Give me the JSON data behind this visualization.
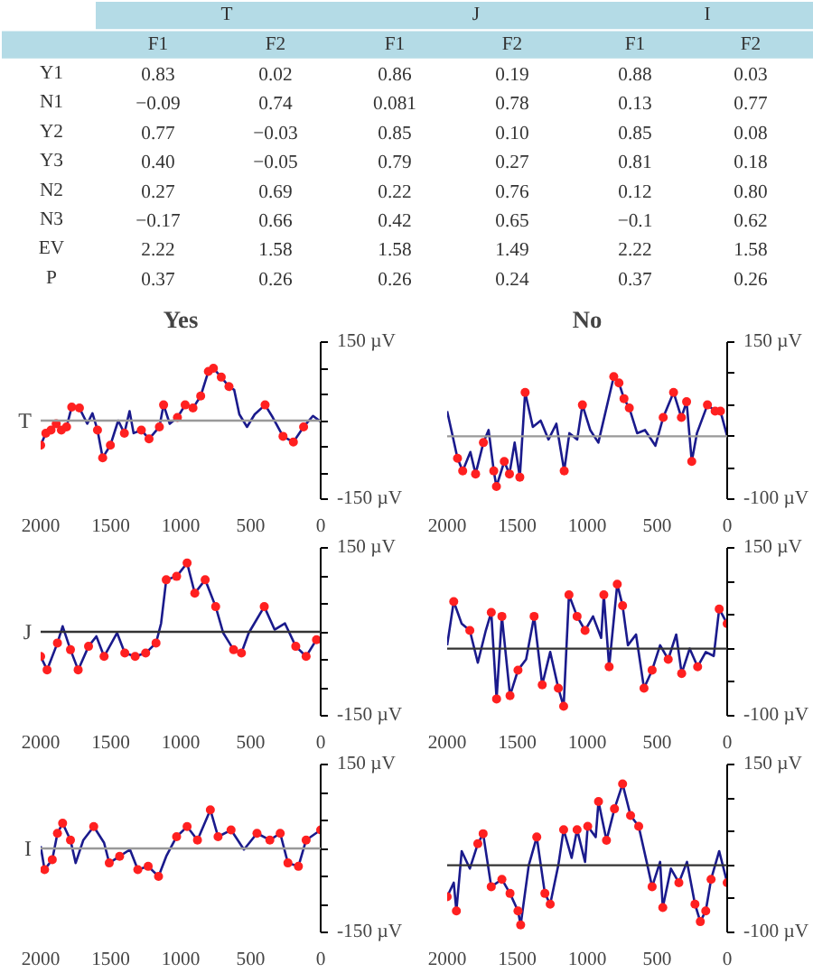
{
  "chart_data": [
    {
      "type": "other",
      "annotations": [
        "T",
        "J",
        "I",
        "F1",
        "F2",
        "F1",
        "F2",
        "F1",
        "F2",
        "Y1",
        "0.83",
        "0.02",
        "0.86",
        "0.19",
        "0.88",
        "0.03",
        "N1",
        "−0.09",
        "0.74",
        "0.081",
        "0.78",
        "0.13",
        "0.77",
        "Y2",
        "0.77",
        "−0.03",
        "0.85",
        "0.10",
        "0.85",
        "0.08",
        "Y3",
        "0.40",
        "−0.05",
        "0.79",
        "0.27",
        "0.81",
        "0.18",
        "N2",
        "0.27",
        "0.69",
        "0.22",
        "0.76",
        "0.12",
        "0.80",
        "N3",
        "−0.17",
        "0.66",
        "0.42",
        "0.65",
        "−0.1",
        "0.62",
        "EV",
        "2.22",
        "1.58",
        "1.58",
        "1.49",
        "2.22",
        "1.58",
        "P",
        "0.37",
        "0.26",
        "0.26",
        "0.24",
        "0.37",
        "0.26"
      ]
    },
    {
      "type": "line",
      "title": "Yes",
      "ylabel": "T",
      "xlim": [
        2000,
        0
      ],
      "xticks": [
        2000,
        1500,
        1000,
        500,
        0
      ],
      "ylim": [
        -150,
        150
      ],
      "yticks": [
        {
          "value": -150,
          "label": "-150 µV"
        },
        {
          "value": -100,
          "label": null
        },
        {
          "value": -50,
          "label": null
        },
        {
          "value": 0,
          "label": null
        },
        {
          "value": 50,
          "label": null
        },
        {
          "value": 100,
          "label": null
        },
        {
          "value": 150,
          "label": "150 µV"
        }
      ],
      "ref_lines": [
        {
          "axis": "y",
          "value": 0,
          "color": "#999999"
        }
      ],
      "x": [
        2000,
        1963,
        1926,
        1889,
        1852,
        1815,
        1778,
        1723,
        1667,
        1630,
        1594,
        1557,
        1502,
        1446,
        1402,
        1365,
        1336,
        1281,
        1226,
        1152,
        1122,
        1078,
        1023,
        968,
        912,
        857,
        802,
        766,
        710,
        655,
        618,
        581,
        526,
        471,
        397,
        342,
        269,
        195,
        122,
        55,
        0
      ],
      "series": [
        {
          "color": "#1a1a8c",
          "marker": "none",
          "values": [
            -47,
            -24,
            -18,
            -6,
            -18,
            -12,
            26,
            24,
            -6,
            14,
            -18,
            -71,
            -47,
            0,
            -24,
            18,
            -24,
            -18,
            -35,
            -12,
            30,
            -6,
            6,
            30,
            24,
            47,
            94,
            100,
            83,
            65,
            59,
            12,
            -12,
            12,
            30,
            6,
            -30,
            -41,
            -12,
            9,
            -2
          ]
        },
        {
          "type": "scatter",
          "color": "#ff2020",
          "marker": "circle",
          "x": [
            2000,
            1963,
            1926,
            1889,
            1852,
            1815,
            1778,
            1723,
            1594,
            1557,
            1502,
            1402,
            1281,
            1226,
            1152,
            1122,
            1023,
            968,
            912,
            857,
            802,
            766,
            710,
            655,
            397,
            269,
            195,
            122
          ],
          "values": [
            -47,
            -24,
            -18,
            -6,
            -18,
            -12,
            26,
            24,
            -18,
            -71,
            -47,
            -24,
            -18,
            -35,
            -12,
            30,
            6,
            30,
            24,
            47,
            94,
            100,
            83,
            65,
            30,
            -30,
            -41,
            -12
          ]
        }
      ]
    },
    {
      "type": "line",
      "title": "No",
      "xlim": [
        2000,
        0
      ],
      "xticks": [
        2000,
        1500,
        1000,
        500,
        0
      ],
      "ylim": [
        -100,
        150
      ],
      "yticks": [
        {
          "value": -100,
          "label": "-100 µV"
        },
        {
          "value": -50,
          "label": null
        },
        {
          "value": 0,
          "label": null
        },
        {
          "value": 50,
          "label": null
        },
        {
          "value": 100,
          "label": null
        },
        {
          "value": 150,
          "label": "150 µV"
        }
      ],
      "ref_lines": [
        {
          "axis": "y",
          "value": 0,
          "color": "#999999"
        }
      ],
      "x": [
        2000,
        1970,
        1926,
        1889,
        1834,
        1797,
        1741,
        1704,
        1667,
        1648,
        1592,
        1555,
        1518,
        1481,
        1443,
        1388,
        1332,
        1276,
        1220,
        1164,
        1127,
        1071,
        1034,
        978,
        920,
        810,
        773,
        737,
        699,
        643,
        587,
        513,
        457,
        383,
        327,
        290,
        253,
        216,
        141,
        86,
        48,
        0
      ],
      "series": [
        {
          "color": "#1a1a8c",
          "marker": "none",
          "values": [
            40,
            10,
            -35,
            -55,
            -25,
            -60,
            -10,
            10,
            -55,
            -80,
            -40,
            -60,
            -10,
            -65,
            70,
            15,
            25,
            -5,
            20,
            -55,
            5,
            -5,
            50,
            10,
            -10,
            95,
            85,
            60,
            45,
            5,
            10,
            -15,
            30,
            70,
            30,
            55,
            -40,
            5,
            50,
            40,
            40,
            0
          ]
        },
        {
          "type": "scatter",
          "color": "#ff2020",
          "marker": "circle",
          "x": [
            1926,
            1889,
            1797,
            1741,
            1667,
            1648,
            1592,
            1555,
            1481,
            1443,
            1164,
            1034,
            810,
            773,
            737,
            699,
            457,
            383,
            327,
            290,
            253,
            141,
            86,
            48
          ],
          "values": [
            -35,
            -55,
            -60,
            -10,
            -55,
            -80,
            -40,
            -60,
            -65,
            70,
            -55,
            50,
            95,
            85,
            60,
            45,
            30,
            70,
            30,
            55,
            -40,
            50,
            40,
            40
          ]
        }
      ]
    },
    {
      "type": "line",
      "ylabel": "J",
      "xlim": [
        2000,
        0
      ],
      "xticks": [
        2000,
        1500,
        1000,
        500,
        0
      ],
      "ylim": [
        -150,
        150
      ],
      "yticks": [
        {
          "value": -150,
          "label": "-150 µV"
        },
        {
          "value": -100,
          "label": null
        },
        {
          "value": -50,
          "label": null
        },
        {
          "value": 0,
          "label": null
        },
        {
          "value": 50,
          "label": null
        },
        {
          "value": 100,
          "label": null
        },
        {
          "value": 150,
          "label": "150 µV"
        }
      ],
      "ref_lines": [
        {
          "axis": "y",
          "value": 0,
          "color": "#333333"
        }
      ],
      "x": [
        2000,
        1954,
        1880,
        1843,
        1787,
        1732,
        1658,
        1602,
        1547,
        1454,
        1399,
        1325,
        1250,
        1176,
        1140,
        1103,
        1029,
        954,
        899,
        825,
        750,
        696,
        622,
        566,
        514,
        403,
        329,
        255,
        178,
        104,
        30,
        0
      ],
      "series": [
        {
          "color": "#1a1a8c",
          "marker": "none",
          "values": [
            -44,
            -68,
            -20,
            10,
            -32,
            -68,
            -26,
            -8,
            -44,
            -2,
            -38,
            -44,
            -38,
            -20,
            15,
            93,
            99,
            123,
            69,
            93,
            45,
            -2,
            -32,
            -38,
            -2,
            45,
            4,
            15,
            -26,
            -44,
            -14,
            -12
          ]
        },
        {
          "type": "scatter",
          "color": "#ff2020",
          "marker": "circle",
          "x": [
            2000,
            1954,
            1880,
            1787,
            1732,
            1658,
            1547,
            1399,
            1325,
            1250,
            1176,
            1103,
            1029,
            954,
            899,
            825,
            750,
            622,
            566,
            403,
            178,
            104,
            30
          ],
          "values": [
            -44,
            -68,
            -20,
            -32,
            -68,
            -26,
            -44,
            -38,
            -44,
            -38,
            -20,
            93,
            99,
            123,
            69,
            93,
            45,
            -32,
            -38,
            45,
            -26,
            -44,
            -14
          ]
        }
      ]
    },
    {
      "type": "line",
      "xlim": [
        2000,
        0
      ],
      "xticks": [
        2000,
        1500,
        1000,
        500,
        0
      ],
      "ylim": [
        -100,
        150
      ],
      "yticks": [
        {
          "value": -100,
          "label": "-100 µV"
        },
        {
          "value": -50,
          "label": null
        },
        {
          "value": 0,
          "label": null
        },
        {
          "value": 50,
          "label": null
        },
        {
          "value": 100,
          "label": null
        },
        {
          "value": 150,
          "label": "150 µV"
        }
      ],
      "ref_lines": [
        {
          "axis": "y",
          "value": 0,
          "color": "#333333"
        }
      ],
      "x": [
        2000,
        1953,
        1896,
        1838,
        1781,
        1724,
        1685,
        1647,
        1609,
        1551,
        1494,
        1436,
        1379,
        1321,
        1264,
        1206,
        1168,
        1130,
        1072,
        1015,
        958,
        900,
        881,
        843,
        785,
        747,
        709,
        651,
        594,
        536,
        479,
        421,
        364,
        325,
        268,
        211,
        153,
        96,
        57,
        0
      ],
      "series": [
        {
          "color": "#1a1a8c",
          "marker": "none",
          "values": [
            5,
            70,
            37,
            27,
            -21,
            27,
            54,
            -75,
            48,
            -70,
            -32,
            -16,
            48,
            -54,
            -5,
            -59,
            -86,
            80,
            48,
            27,
            48,
            16,
            80,
            -27,
            96,
            64,
            5,
            21,
            -59,
            -32,
            5,
            -16,
            21,
            -37,
            0,
            -27,
            -5,
            -11,
            59,
            37
          ]
        },
        {
          "type": "scatter",
          "color": "#ff2020",
          "marker": "circle",
          "x": [
            1953,
            1838,
            1685,
            1647,
            1609,
            1551,
            1494,
            1379,
            1321,
            1206,
            1168,
            1130,
            1072,
            1015,
            881,
            843,
            785,
            747,
            594,
            536,
            421,
            325,
            211,
            57,
            0
          ],
          "values": [
            70,
            27,
            54,
            -75,
            48,
            -70,
            -32,
            48,
            -54,
            -59,
            -86,
            80,
            48,
            27,
            80,
            -27,
            96,
            64,
            -59,
            -32,
            -16,
            -37,
            -27,
            59,
            37
          ]
        }
      ]
    },
    {
      "type": "line",
      "ylabel": "I",
      "xlim": [
        2000,
        0
      ],
      "xticks": [
        2000,
        1500,
        1000,
        500,
        0
      ],
      "ylim": [
        -150,
        150
      ],
      "yticks": [
        {
          "value": -150,
          "label": "-150 µV"
        },
        {
          "value": -100,
          "label": null
        },
        {
          "value": -50,
          "label": null
        },
        {
          "value": 0,
          "label": null
        },
        {
          "value": 50,
          "label": null
        },
        {
          "value": 100,
          "label": null
        },
        {
          "value": 150,
          "label": "150 µV"
        }
      ],
      "ref_lines": [
        {
          "axis": "y",
          "value": 0,
          "color": "#999999"
        }
      ],
      "x": [
        2000,
        1972,
        1917,
        1880,
        1843,
        1787,
        1750,
        1695,
        1621,
        1547,
        1510,
        1436,
        1362,
        1306,
        1232,
        1158,
        1103,
        1029,
        954,
        880,
        788,
        733,
        640,
        548,
        455,
        363,
        289,
        234,
        159,
        104,
        0
      ],
      "series": [
        {
          "color": "#1a1a8c",
          "marker": "none",
          "values": [
            4,
            -38,
            -20,
            27,
            45,
            15,
            -26,
            15,
            39,
            10,
            -26,
            -14,
            -2,
            -38,
            -32,
            -50,
            -14,
            21,
            39,
            15,
            69,
            21,
            33,
            -2,
            27,
            15,
            27,
            -26,
            -32,
            15,
            33
          ]
        },
        {
          "type": "scatter",
          "color": "#ff2020",
          "marker": "circle",
          "x": [
            1972,
            1917,
            1880,
            1843,
            1787,
            1621,
            1510,
            1436,
            1306,
            1232,
            1158,
            1029,
            954,
            880,
            788,
            733,
            640,
            455,
            363,
            289,
            234,
            159,
            104,
            0
          ],
          "values": [
            -38,
            -20,
            27,
            45,
            15,
            39,
            -26,
            -14,
            -38,
            -32,
            -50,
            21,
            39,
            15,
            69,
            21,
            33,
            27,
            15,
            27,
            -26,
            -32,
            15,
            33
          ]
        }
      ]
    },
    {
      "type": "line",
      "xlim": [
        2000,
        0
      ],
      "xticks": [
        2000,
        1500,
        1000,
        500,
        0
      ],
      "ylim": [
        -100,
        150
      ],
      "yticks": [
        {
          "value": -100,
          "label": "-100 µV"
        },
        {
          "value": -50,
          "label": null
        },
        {
          "value": 0,
          "label": null
        },
        {
          "value": 50,
          "label": null
        },
        {
          "value": 100,
          "label": null
        },
        {
          "value": 150,
          "label": "150 µV"
        }
      ],
      "ref_lines": [
        {
          "axis": "y",
          "value": 0,
          "color": "#333333"
        }
      ],
      "x": [
        2000,
        1953,
        1934,
        1896,
        1838,
        1781,
        1743,
        1685,
        1609,
        1551,
        1494,
        1475,
        1417,
        1360,
        1302,
        1264,
        1206,
        1168,
        1111,
        1072,
        1015,
        996,
        939,
        919,
        862,
        805,
        747,
        690,
        632,
        575,
        536,
        479,
        460,
        402,
        345,
        287,
        230,
        192,
        153,
        115,
        57,
        0
      ],
      "series": [
        {
          "color": "#1a1a8c",
          "marker": "none",
          "values": [
            -47,
            -26,
            -68,
            21,
            -5,
            32,
            47,
            -32,
            -21,
            -42,
            -68,
            -89,
            0,
            42,
            -42,
            -58,
            0,
            53,
            11,
            53,
            5,
            58,
            42,
            95,
            37,
            84,
            121,
            74,
            58,
            5,
            -32,
            5,
            -63,
            -5,
            -26,
            5,
            -58,
            -84,
            -68,
            -21,
            21,
            -26
          ]
        },
        {
          "type": "scatter",
          "color": "#ff2020",
          "marker": "circle",
          "x": [
            2000,
            1934,
            1781,
            1743,
            1685,
            1609,
            1551,
            1494,
            1475,
            1360,
            1302,
            1264,
            1168,
            1072,
            996,
            919,
            862,
            805,
            747,
            690,
            632,
            536,
            460,
            345,
            230,
            192,
            153,
            115,
            0
          ],
          "values": [
            -47,
            -68,
            32,
            47,
            -32,
            -21,
            -42,
            -68,
            -89,
            42,
            -42,
            -58,
            53,
            53,
            58,
            95,
            37,
            84,
            121,
            74,
            58,
            -32,
            -63,
            -26,
            -58,
            -84,
            -68,
            -21,
            -26
          ]
        }
      ]
    }
  ]
}
